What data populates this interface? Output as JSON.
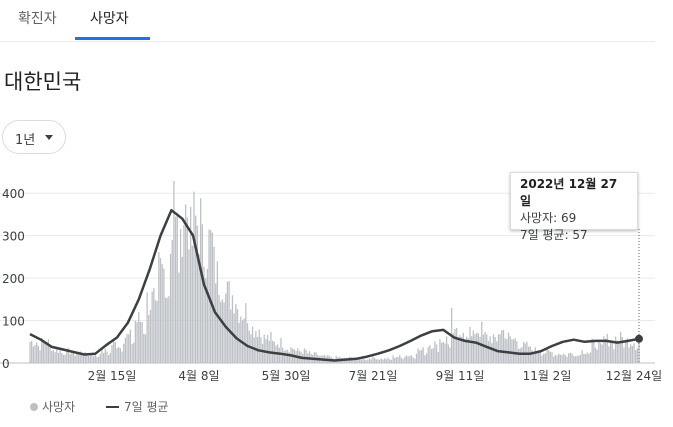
{
  "tabs": [
    {
      "label": "확진자",
      "active": false
    },
    {
      "label": "사망자",
      "active": true
    }
  ],
  "accent_color": "#1a73e8",
  "region_title": "대한민국",
  "range_selector": {
    "label": "1년",
    "icon": "caret-down-icon"
  },
  "tooltip": {
    "date": "2022년 12월 27일",
    "deaths_text": "사망자: 69",
    "avg_text": "7일 평균: 57"
  },
  "legend": {
    "bars_label": "사망자",
    "line_label": "7일 평균"
  },
  "chart_data": {
    "type": "bar",
    "title": "",
    "xlabel": "",
    "ylabel": "",
    "ylim": [
      0,
      450
    ],
    "y_ticks": [
      0,
      100,
      200,
      300,
      400
    ],
    "x_range": [
      "2021-12-28",
      "2022-12-27"
    ],
    "x_ticks": [
      {
        "date": "2022-02-15",
        "label": "2월 15일"
      },
      {
        "date": "2022-04-08",
        "label": "4월 8일"
      },
      {
        "date": "2022-05-30",
        "label": "5월 30일"
      },
      {
        "date": "2022-07-21",
        "label": "7월 21일"
      },
      {
        "date": "2022-09-11",
        "label": "9월 11일"
      },
      {
        "date": "2022-11-02",
        "label": "11월 2일"
      },
      {
        "date": "2022-12-24",
        "label": "12월 24일"
      }
    ],
    "series": [
      {
        "name": "사망자",
        "kind": "bar",
        "color": "#bdc1c6",
        "weekly_mean": [
          50,
          48,
          30,
          27,
          25,
          20,
          28,
          45,
          62,
          100,
          145,
          215,
          310,
          355,
          330,
          280,
          200,
          160,
          120,
          80,
          58,
          48,
          35,
          28,
          20,
          15,
          13,
          12,
          10,
          12,
          10,
          15,
          18,
          30,
          45,
          55,
          65,
          75,
          78,
          60,
          75,
          55,
          40,
          30,
          25,
          22,
          22,
          28,
          45,
          55,
          58,
          52,
          55,
          55,
          50,
          55,
          57
        ],
        "highlight": [
          {
            "date": "2022-12-27",
            "value": 69
          }
        ],
        "notable_peaks": [
          {
            "date": "2022-03-24",
            "value": 429
          },
          {
            "date": "2022-09-06",
            "value": 130
          }
        ]
      },
      {
        "name": "7일 평균",
        "kind": "line",
        "color": "#3c4043",
        "values": [
          68,
          55,
          38,
          32,
          26,
          20,
          22,
          42,
          60,
          95,
          150,
          220,
          300,
          360,
          340,
          300,
          185,
          120,
          85,
          58,
          40,
          30,
          25,
          22,
          18,
          12,
          10,
          8,
          6,
          8,
          10,
          15,
          22,
          30,
          40,
          52,
          65,
          75,
          78,
          60,
          52,
          48,
          38,
          28,
          25,
          22,
          22,
          28,
          40,
          50,
          55,
          50,
          52,
          52,
          48,
          52,
          57
        ],
        "highlight": [
          {
            "date": "2022-12-27",
            "value": 57
          }
        ]
      }
    ]
  }
}
